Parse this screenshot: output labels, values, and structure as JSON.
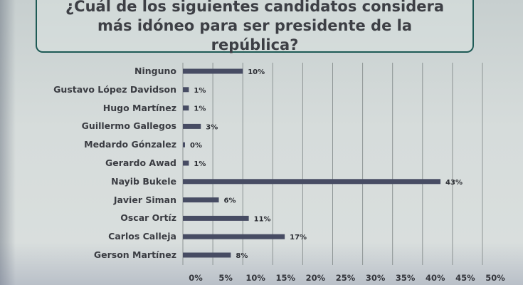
{
  "chart_data": {
    "type": "bar",
    "orientation": "horizontal",
    "title": "¿Cuál de los siguientes candidatos considera más idóneo para ser presidente de la república?",
    "categories": [
      "Ninguno",
      "Gustavo López Davidson",
      "Hugo Martínez",
      "Guillermo Gallegos",
      "Medardo Gónzalez",
      "Gerardo Awad",
      "Nayib Bukele",
      "Javier Siman",
      "Oscar Ortíz",
      "Carlos Calleja",
      "Gerson Martínez"
    ],
    "values": [
      10,
      1,
      1,
      3,
      0,
      1,
      43,
      6,
      11,
      17,
      8
    ],
    "value_labels": [
      "10%",
      "1%",
      "1%",
      "3%",
      "0%",
      "1%",
      "43%",
      "6%",
      "11%",
      "17%",
      "8%"
    ],
    "xlim": [
      0,
      50
    ],
    "x_ticks": [
      "0%",
      "5%",
      "10%",
      "15%",
      "20%",
      "25%",
      "30%",
      "35%",
      "40%",
      "45%",
      "50%"
    ],
    "x_tick_values": [
      0,
      5,
      10,
      15,
      20,
      25,
      30,
      35,
      40,
      45,
      50
    ],
    "grid": true,
    "bar_color": "#474c63",
    "title_border_color": "#1e5a55"
  }
}
